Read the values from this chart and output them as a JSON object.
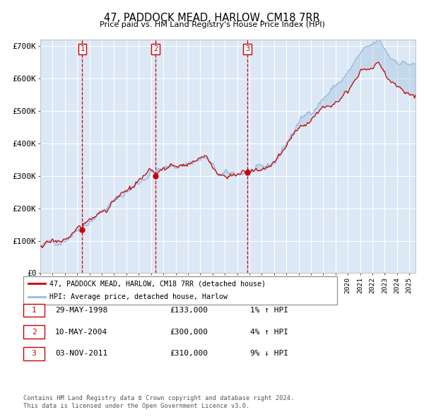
{
  "title": "47, PADDOCK MEAD, HARLOW, CM18 7RR",
  "subtitle": "Price paid vs. HM Land Registry's House Price Index (HPI)",
  "xlim_start": 1995.0,
  "xlim_end": 2025.5,
  "ylim": [
    0,
    720000
  ],
  "yticks": [
    0,
    100000,
    200000,
    300000,
    400000,
    500000,
    600000,
    700000
  ],
  "ytick_labels": [
    "£0",
    "£100K",
    "£200K",
    "£300K",
    "£400K",
    "£500K",
    "£600K",
    "£700K"
  ],
  "purchase_dates": [
    1998.41,
    2004.36,
    2011.84
  ],
  "purchase_prices": [
    133000,
    300000,
    310000
  ],
  "purchase_labels": [
    "1",
    "2",
    "3"
  ],
  "vline_color": "#cc0000",
  "hpi_color": "#99bbdd",
  "price_color": "#cc0000",
  "dot_color": "#cc0000",
  "bg_color": "#dce8f5",
  "grid_color": "#ffffff",
  "legend_line1": "47, PADDOCK MEAD, HARLOW, CM18 7RR (detached house)",
  "legend_line2": "HPI: Average price, detached house, Harlow",
  "table_rows": [
    [
      "1",
      "29-MAY-1998",
      "£133,000",
      "1% ↑ HPI"
    ],
    [
      "2",
      "10-MAY-2004",
      "£300,000",
      "4% ↑ HPI"
    ],
    [
      "3",
      "03-NOV-2011",
      "£310,000",
      "9% ↓ HPI"
    ]
  ],
  "footnote1": "Contains HM Land Registry data © Crown copyright and database right 2024.",
  "footnote2": "This data is licensed under the Open Government Licence v3.0."
}
